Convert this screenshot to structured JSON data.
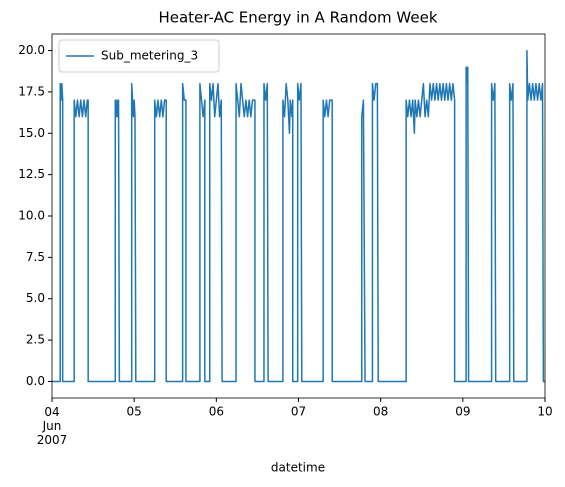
{
  "chart_data": {
    "type": "line",
    "title": "Heater-AC Energy  in A Random Week",
    "xlabel": "datetime",
    "xlim": [
      4,
      10
    ],
    "xticks": [
      {
        "value": 4,
        "label": "04\nJun\n2007"
      },
      {
        "value": 5,
        "label": "05"
      },
      {
        "value": 6,
        "label": "06"
      },
      {
        "value": 7,
        "label": "07"
      },
      {
        "value": 8,
        "label": "08"
      },
      {
        "value": 9,
        "label": "09"
      },
      {
        "value": 10,
        "label": "10"
      }
    ],
    "ylim": [
      -1,
      21
    ],
    "yticks": [
      {
        "value": 0,
        "label": "0.0"
      },
      {
        "value": 2.5,
        "label": "2.5"
      },
      {
        "value": 5,
        "label": "5.0"
      },
      {
        "value": 7.5,
        "label": "7.5"
      },
      {
        "value": 10,
        "label": "10.0"
      },
      {
        "value": 12.5,
        "label": "12.5"
      },
      {
        "value": 15,
        "label": "15.0"
      },
      {
        "value": 17.5,
        "label": "17.5"
      },
      {
        "value": 20,
        "label": "20.0"
      }
    ],
    "legend": "upper left",
    "series": [
      {
        "name": "Sub_metering_3",
        "color": "#1f77b4",
        "x": [
          4.0,
          4.1,
          4.1,
          4.11,
          4.12,
          4.13,
          4.13,
          4.27,
          4.27,
          4.29,
          4.31,
          4.33,
          4.35,
          4.37,
          4.39,
          4.41,
          4.43,
          4.44,
          4.44,
          4.77,
          4.77,
          4.78,
          4.79,
          4.8,
          4.81,
          4.82,
          4.97,
          4.97,
          4.98,
          4.99,
          5.0,
          5.01,
          5.02,
          5.25,
          5.25,
          5.27,
          5.29,
          5.31,
          5.33,
          5.35,
          5.37,
          5.39,
          5.39,
          5.59,
          5.59,
          5.61,
          5.63,
          5.63,
          5.8,
          5.8,
          5.82,
          5.84,
          5.86,
          5.86,
          5.92,
          5.92,
          5.94,
          5.96,
          5.98,
          6.0,
          6.02,
          6.04,
          6.06,
          6.07,
          6.24,
          6.24,
          6.26,
          6.28,
          6.3,
          6.32,
          6.34,
          6.36,
          6.38,
          6.4,
          6.42,
          6.44,
          6.47,
          6.47,
          6.58,
          6.58,
          6.6,
          6.62,
          6.63,
          6.81,
          6.81,
          6.83,
          6.85,
          6.87,
          6.89,
          6.9,
          6.92,
          6.93,
          6.93,
          6.99,
          6.99,
          7.01,
          7.03,
          7.04,
          7.3,
          7.3,
          7.32,
          7.34,
          7.36,
          7.38,
          7.41,
          7.41,
          7.77,
          7.77,
          7.79,
          7.81,
          7.9,
          7.9,
          7.92,
          7.94,
          7.96,
          7.97,
          8.31,
          8.31,
          8.33,
          8.35,
          8.37,
          8.39,
          8.41,
          8.42,
          8.44,
          8.46,
          8.48,
          8.5,
          8.52,
          8.54,
          8.56,
          8.58,
          8.6,
          8.62,
          8.64,
          8.66,
          8.68,
          8.7,
          8.72,
          8.74,
          8.76,
          8.78,
          8.8,
          8.82,
          8.84,
          8.86,
          8.88,
          8.9,
          8.9,
          9.04,
          9.04,
          9.05,
          9.06,
          9.07,
          9.35,
          9.35,
          9.37,
          9.39,
          9.4,
          9.57,
          9.57,
          9.59,
          9.61,
          9.62,
          9.78,
          9.78,
          9.79,
          9.81,
          9.83,
          9.85,
          9.87,
          9.89,
          9.91,
          9.93,
          9.95,
          9.97,
          9.98,
          10.0
        ],
        "values": [
          0,
          0,
          18,
          17,
          18,
          17,
          0,
          0,
          17,
          16,
          17,
          16,
          17,
          16,
          17,
          16,
          17,
          17,
          0,
          0,
          17,
          16,
          17,
          16,
          17,
          0,
          0,
          18,
          17,
          16,
          17,
          16,
          0,
          0,
          17,
          16,
          17,
          16,
          17,
          16,
          17,
          17,
          0,
          0,
          18,
          17,
          17,
          0,
          0,
          18,
          17,
          16,
          17,
          0,
          0,
          18,
          17,
          18,
          16,
          17,
          18,
          16,
          17,
          0,
          0,
          18,
          17,
          16,
          18,
          17,
          16,
          17,
          16,
          17,
          16,
          17,
          17,
          0,
          0,
          18,
          17,
          18,
          0,
          0,
          17,
          16,
          18,
          17,
          15,
          17,
          16,
          17,
          0,
          0,
          18,
          17,
          18,
          0,
          0,
          17,
          16,
          17,
          16,
          17,
          17,
          0,
          0,
          16,
          17,
          0,
          0,
          18,
          17,
          18,
          18,
          0,
          0,
          17,
          16,
          17,
          16,
          17,
          15,
          17,
          16,
          17,
          16,
          17,
          18,
          16,
          17,
          16,
          18,
          17,
          18,
          17,
          18,
          17,
          18,
          17,
          18,
          17,
          18,
          17,
          18,
          17,
          18,
          17,
          0,
          0,
          19,
          18,
          19,
          0,
          0,
          18,
          17,
          18,
          0,
          0,
          18,
          17,
          18,
          0,
          0,
          20,
          17,
          18,
          17,
          18,
          17,
          18,
          17,
          18,
          17,
          18,
          0,
          0
        ]
      }
    ]
  }
}
